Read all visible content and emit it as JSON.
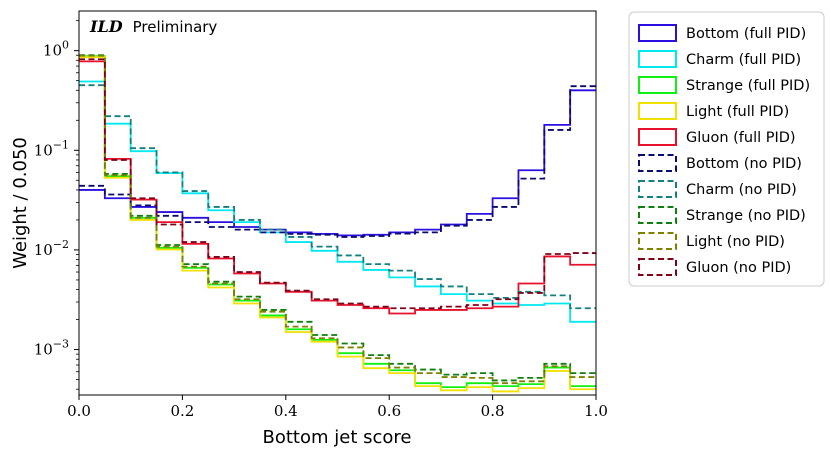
{
  "chart_data": {
    "type": "line",
    "title": "",
    "annotation_bold": "ILD",
    "annotation_text": "Preliminary",
    "xlabel": "Bottom jet score",
    "ylabel": "Weight / 0.050",
    "xlim": [
      0.0,
      1.0
    ],
    "ylim": [
      0.00035,
      2.5
    ],
    "yscale": "log",
    "x_ticks": [
      0.0,
      0.2,
      0.4,
      0.6,
      0.8,
      1.0
    ],
    "x_tick_labels": [
      "0.0",
      "0.2",
      "0.4",
      "0.6",
      "0.8",
      "1.0"
    ],
    "y_ticks": [
      0.001,
      0.01,
      0.1,
      1.0
    ],
    "y_tick_labels": [
      {
        "base": "10",
        "exp": "−3"
      },
      {
        "base": "10",
        "exp": "−2"
      },
      {
        "base": "10",
        "exp": "−1"
      },
      {
        "base": "10",
        "exp": "0"
      }
    ],
    "bin_edges": [
      0.0,
      0.05,
      0.1,
      0.15,
      0.2,
      0.25,
      0.3,
      0.35,
      0.4,
      0.45,
      0.5,
      0.55,
      0.6,
      0.65,
      0.7,
      0.75,
      0.8,
      0.85,
      0.9,
      0.95,
      1.0
    ],
    "legend_position": "outside right",
    "series": [
      {
        "name": "Bottom (full PID)",
        "color": "#2a0fe0",
        "style": "solid",
        "values": [
          0.04,
          0.033,
          0.027,
          0.024,
          0.021,
          0.019,
          0.017,
          0.016,
          0.015,
          0.0145,
          0.014,
          0.0142,
          0.015,
          0.016,
          0.018,
          0.023,
          0.033,
          0.063,
          0.18,
          0.4
        ]
      },
      {
        "name": "Charm (full PID)",
        "color": "#00e8f0",
        "style": "solid",
        "values": [
          0.49,
          0.185,
          0.098,
          0.059,
          0.037,
          0.025,
          0.019,
          0.015,
          0.012,
          0.0098,
          0.0076,
          0.0063,
          0.0053,
          0.0043,
          0.0036,
          0.0031,
          0.0029,
          0.0028,
          0.0029,
          0.0019
        ]
      },
      {
        "name": "Strange (full PID)",
        "color": "#10f010",
        "style": "solid",
        "values": [
          0.88,
          0.055,
          0.021,
          0.0105,
          0.0066,
          0.0045,
          0.0031,
          0.0022,
          0.0016,
          0.00125,
          0.00092,
          0.00072,
          0.00062,
          0.00046,
          0.00042,
          0.00046,
          0.00043,
          0.00045,
          0.00066,
          0.00043
        ]
      },
      {
        "name": "Light (full PID)",
        "color": "#f2e100",
        "style": "solid",
        "values": [
          0.86,
          0.053,
          0.02,
          0.0101,
          0.0062,
          0.0042,
          0.0029,
          0.0021,
          0.0015,
          0.0012,
          0.00085,
          0.00065,
          0.00058,
          0.00043,
          0.00039,
          0.00042,
          0.00038,
          0.00041,
          0.00061,
          0.0004
        ]
      },
      {
        "name": "Gluon (full PID)",
        "color": "#e8102a",
        "style": "solid",
        "values": [
          0.78,
          0.082,
          0.032,
          0.019,
          0.0115,
          0.0082,
          0.0058,
          0.0046,
          0.0038,
          0.0031,
          0.0028,
          0.0026,
          0.0023,
          0.0025,
          0.0025,
          0.0026,
          0.0027,
          0.0046,
          0.0086,
          0.0071
        ]
      },
      {
        "name": "Bottom (no PID)",
        "color": "#0a0a70",
        "style": "dashed",
        "values": [
          0.044,
          0.036,
          0.028,
          0.022,
          0.019,
          0.017,
          0.016,
          0.015,
          0.0145,
          0.0142,
          0.0135,
          0.0138,
          0.0146,
          0.015,
          0.0175,
          0.02,
          0.027,
          0.052,
          0.16,
          0.44
        ]
      },
      {
        "name": "Charm (no PID)",
        "color": "#138080",
        "style": "dashed",
        "values": [
          0.45,
          0.22,
          0.105,
          0.06,
          0.039,
          0.027,
          0.02,
          0.016,
          0.0135,
          0.0108,
          0.0088,
          0.0072,
          0.0062,
          0.0051,
          0.0043,
          0.0036,
          0.0033,
          0.0038,
          0.0035,
          0.0026
        ]
      },
      {
        "name": "Strange (no PID)",
        "color": "#0c800c",
        "style": "dashed",
        "values": [
          0.9,
          0.058,
          0.022,
          0.0112,
          0.0072,
          0.0048,
          0.0034,
          0.0025,
          0.0019,
          0.0014,
          0.00115,
          0.00088,
          0.00072,
          0.00063,
          0.00056,
          0.00058,
          0.00049,
          0.00052,
          0.00072,
          0.00058
        ]
      },
      {
        "name": "Light (no PID)",
        "color": "#808000",
        "style": "dashed",
        "values": [
          0.89,
          0.056,
          0.021,
          0.0108,
          0.0068,
          0.0046,
          0.0032,
          0.0024,
          0.0017,
          0.0013,
          0.00105,
          0.00082,
          0.00066,
          0.00058,
          0.00053,
          0.00052,
          0.00046,
          0.00048,
          0.00068,
          0.00053
        ]
      },
      {
        "name": "Gluon (no PID)",
        "color": "#800018",
        "style": "dashed",
        "values": [
          0.82,
          0.08,
          0.033,
          0.018,
          0.012,
          0.0085,
          0.006,
          0.0047,
          0.0039,
          0.0032,
          0.0029,
          0.0027,
          0.0026,
          0.0026,
          0.0027,
          0.0028,
          0.0032,
          0.0037,
          0.0091,
          0.0093
        ]
      }
    ]
  }
}
